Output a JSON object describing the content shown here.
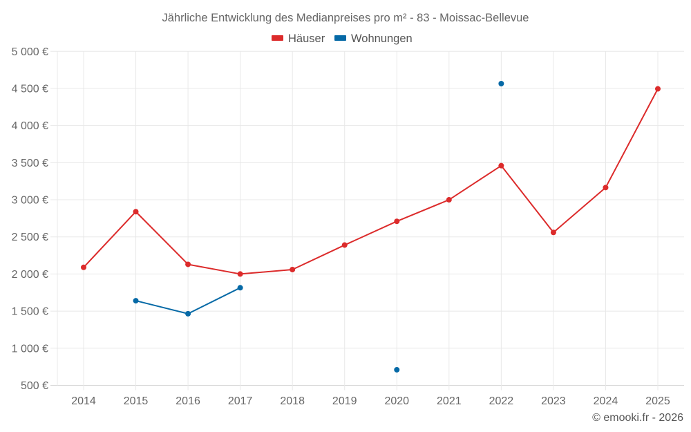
{
  "chart_data": {
    "type": "line",
    "title": "Jährliche Entwicklung des Medianpreises pro m² - 83 - Moissac-Bellevue",
    "xlabel": "",
    "ylabel": "",
    "categories": [
      "2014",
      "2015",
      "2016",
      "2017",
      "2018",
      "2019",
      "2020",
      "2021",
      "2022",
      "2023",
      "2024",
      "2025"
    ],
    "ylim": [
      500,
      5000
    ],
    "yticks": [
      500,
      1000,
      1500,
      2000,
      2500,
      3000,
      3500,
      4000,
      4500,
      5000
    ],
    "ytick_labels": [
      "500 €",
      "1 000 €",
      "1 500 €",
      "2 000 €",
      "2 500 €",
      "3 000 €",
      "3 500 €",
      "4 000 €",
      "4 500 €",
      "5 000 €"
    ],
    "grid": true,
    "legend_position": "top-center",
    "series": [
      {
        "name": "Häuser",
        "color": "#dc2b2b",
        "values": [
          2090,
          2840,
          2130,
          2000,
          2060,
          2390,
          2710,
          3000,
          3460,
          2560,
          3165,
          4495
        ]
      },
      {
        "name": "Wohnungen",
        "color": "#0569a6",
        "values": [
          null,
          1640,
          1465,
          1815,
          null,
          null,
          710,
          null,
          4565,
          null,
          null,
          null
        ]
      }
    ],
    "credit": "© emooki.fr - 2026"
  }
}
